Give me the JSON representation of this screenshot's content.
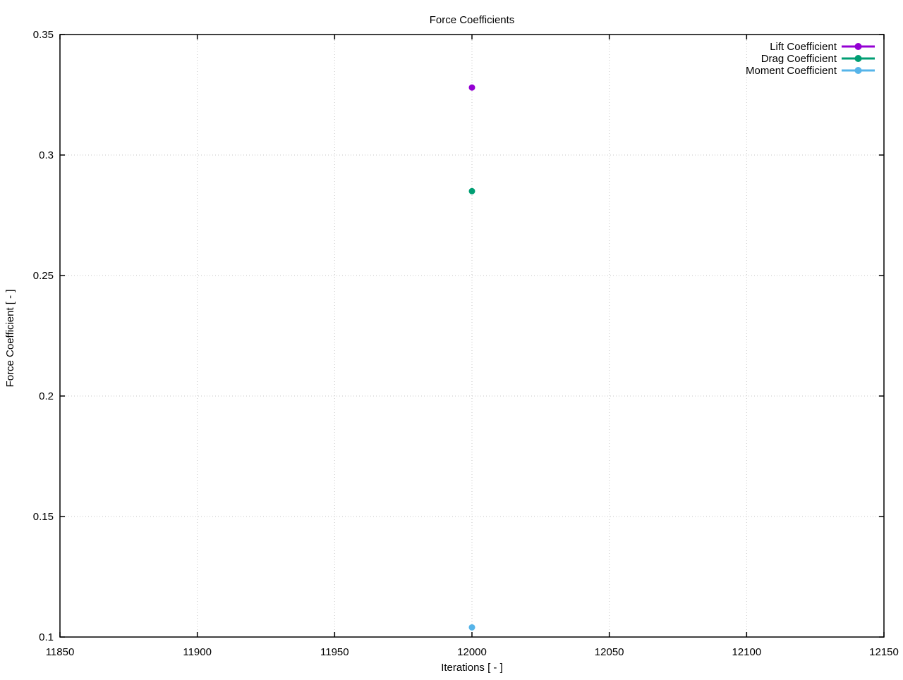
{
  "chart_data": {
    "type": "scatter",
    "title": "Force Coefficients",
    "xlabel": "Iterations [ - ]",
    "ylabel": "Force Coefficient [ - ]",
    "xlim": [
      11850,
      12150
    ],
    "ylim": [
      0.1,
      0.35
    ],
    "xticks": [
      11850,
      11900,
      11950,
      12000,
      12050,
      12100,
      12150
    ],
    "yticks": [
      0.1,
      0.15,
      0.2,
      0.25,
      0.3,
      0.35
    ],
    "grid": true,
    "legend_position": "top-right-inside",
    "marker": "filled-circle",
    "series": [
      {
        "name": "Lift Coefficient",
        "color": "#9400d3",
        "x": [
          12000
        ],
        "y": [
          0.328
        ]
      },
      {
        "name": "Drag Coefficient",
        "color": "#009e73",
        "x": [
          12000
        ],
        "y": [
          0.285
        ]
      },
      {
        "name": "Moment Coefficient",
        "color": "#56b4e9",
        "x": [
          12000
        ],
        "y": [
          0.104
        ]
      }
    ]
  },
  "colors": {
    "background": "#ffffff",
    "border": "#000000",
    "grid": "#c6c6c6",
    "text": "#000000"
  }
}
